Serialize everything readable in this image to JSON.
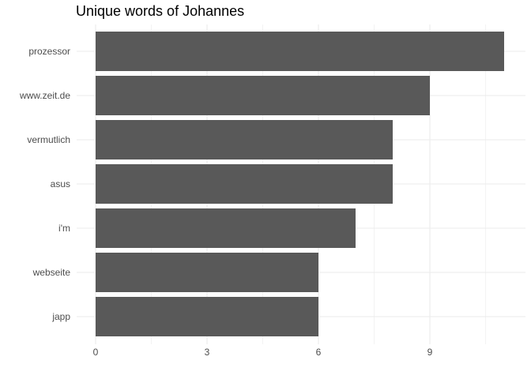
{
  "chart_data": {
    "type": "bar",
    "orientation": "horizontal",
    "title": "Unique words of Johannes",
    "xlabel": "",
    "ylabel": "",
    "categories": [
      "prozessor",
      "www.zeit.de",
      "vermutlich",
      "asus",
      "i'm",
      "webseite",
      "japp"
    ],
    "values": [
      11,
      9,
      8,
      8,
      7,
      6,
      6
    ],
    "xlim": [
      0,
      11
    ],
    "xticks": [
      "0",
      "3",
      "6",
      "9"
    ],
    "grid": true,
    "colors": {
      "bar": "#595959",
      "grid": "#ebebeb",
      "text": "#4d4d4d"
    }
  }
}
